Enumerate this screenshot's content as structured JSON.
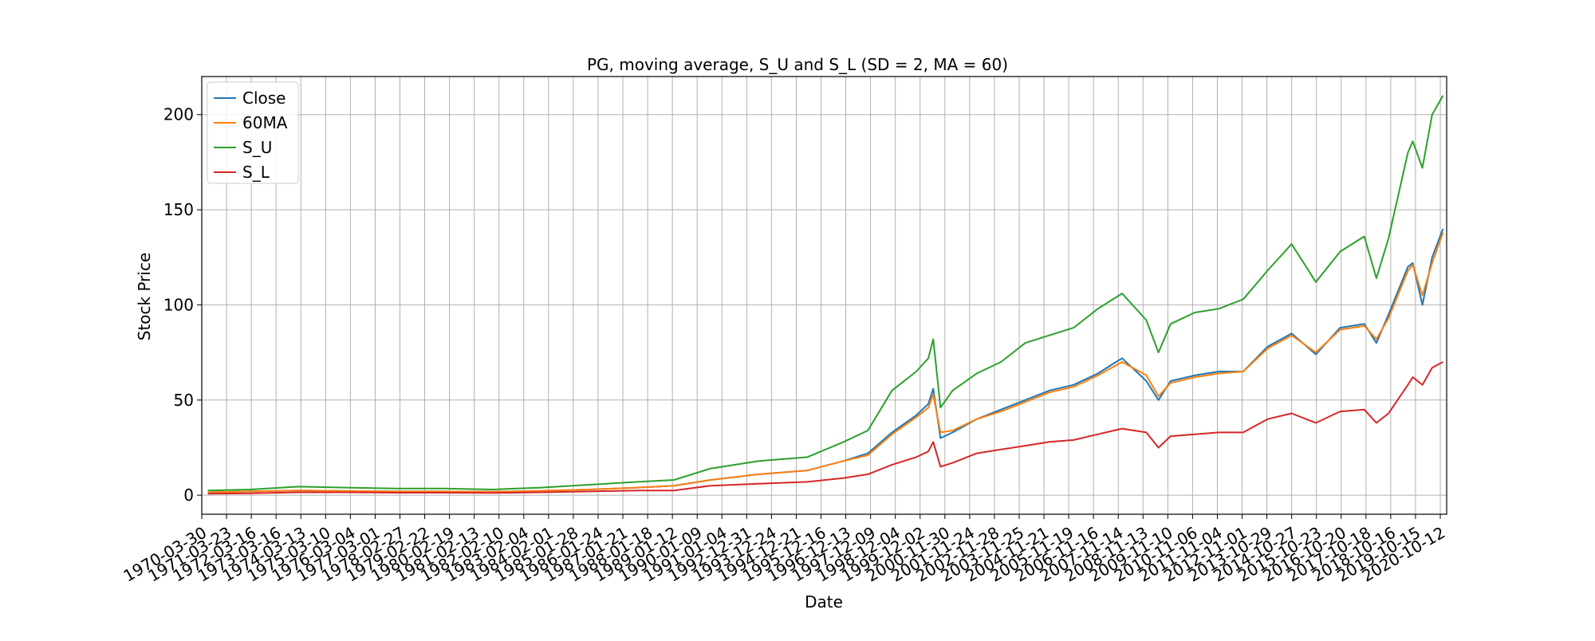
{
  "chart_data": {
    "type": "line",
    "title": "PG, moving average, S_U and S_L (SD = 2, MA = 60)",
    "xlabel": "Date",
    "ylabel": "Stock Price",
    "ylim": [
      -10,
      220
    ],
    "yticks": [
      0,
      50,
      100,
      150,
      200
    ],
    "grid": true,
    "legend_position": "upper-left",
    "x_tick_labels": [
      "1970-03-30",
      "1971-03-23",
      "1972-03-16",
      "1973-03-16",
      "1974-03-13",
      "1975-03-10",
      "1976-03-04",
      "1977-03-01",
      "1978-02-27",
      "1979-02-22",
      "1980-02-19",
      "1981-02-13",
      "1982-02-10",
      "1983-02-04",
      "1984-02-01",
      "1985-01-28",
      "1986-01-24",
      "1987-01-21",
      "1988-01-18",
      "1989-01-12",
      "1990-01-09",
      "1991-01-04",
      "1992-12-31",
      "1993-12-24",
      "1994-12-21",
      "1995-12-16",
      "1996-12-13",
      "1997-12-09",
      "1998-12-04",
      "1999-12-02",
      "2000-11-30",
      "2001-11-24",
      "2002-11-28",
      "2003-11-25",
      "2004-11-21",
      "2005-11-19",
      "2006-11-16",
      "2007-11-14",
      "2008-11-13",
      "2009-11-10",
      "2010-11-06",
      "2011-11-04",
      "2012-11-01",
      "2013-10-29",
      "2014-10-27",
      "2015-10-23",
      "2016-10-20",
      "2017-10-18",
      "2018-10-16",
      "2019-10-15",
      "2020-10-12"
    ],
    "x": [
      1970.25,
      1972,
      1974,
      1976,
      1978,
      1980,
      1982,
      1984,
      1986,
      1988,
      1989.5,
      1991,
      1993,
      1995,
      1996.5,
      1997.5,
      1998.5,
      1999.5,
      2000,
      2000.2,
      2000.5,
      2001,
      2002,
      2003,
      2004,
      2005,
      2006,
      2007,
      2008,
      2009,
      2009.5,
      2010,
      2011,
      2012,
      2013,
      2014,
      2015,
      2016,
      2017,
      2018,
      2018.5,
      2019,
      2019.8,
      2020,
      2020.4,
      2020.8,
      2021.25
    ],
    "series": [
      {
        "name": "Close",
        "color": "#1f77b4",
        "values": [
          1.5,
          2,
          2.5,
          2.2,
          2,
          2,
          1.8,
          2.3,
          3,
          4,
          5,
          8,
          11,
          13,
          18,
          22,
          33,
          42,
          48,
          56,
          30,
          33,
          40,
          45,
          50,
          55,
          58,
          64,
          72,
          60,
          50,
          60,
          63,
          65,
          65,
          78,
          85,
          74,
          88,
          90,
          80,
          95,
          120,
          122,
          100,
          125,
          140
        ]
      },
      {
        "name": "60MA",
        "color": "#ff7f0e",
        "values": [
          1.5,
          2,
          2.5,
          2.2,
          2,
          2,
          1.8,
          2.3,
          3,
          4,
          5,
          8,
          11,
          13,
          18,
          21,
          32,
          41,
          46,
          53,
          33,
          34,
          40,
          44,
          49,
          54,
          57,
          63,
          70,
          63,
          52,
          59,
          62,
          64,
          65,
          77,
          84,
          75,
          87,
          89,
          82,
          93,
          118,
          121,
          105,
          122,
          138
        ]
      },
      {
        "name": "S_U",
        "color": "#2ca02c",
        "values": [
          2.5,
          3,
          4.5,
          4,
          3.5,
          3.5,
          3,
          4,
          5.5,
          7,
          8,
          14,
          18,
          20,
          28,
          34,
          55,
          65,
          72,
          82,
          46,
          55,
          64,
          70,
          80,
          84,
          88,
          98,
          106,
          92,
          75,
          90,
          96,
          98,
          103,
          118,
          132,
          112,
          128,
          136,
          114,
          135,
          180,
          186,
          172,
          200,
          210
        ]
      },
      {
        "name": "S_L",
        "color": "#d62728",
        "values": [
          0.8,
          1,
          1.5,
          1.5,
          1.3,
          1.3,
          1.2,
          1.5,
          2,
          2.5,
          2.5,
          5,
          6,
          7,
          9,
          11,
          16,
          20,
          23,
          28,
          15,
          17,
          22,
          24,
          26,
          28,
          29,
          32,
          35,
          33,
          25,
          31,
          32,
          33,
          33,
          40,
          43,
          38,
          44,
          45,
          38,
          43,
          58,
          62,
          58,
          67,
          70
        ]
      }
    ]
  }
}
